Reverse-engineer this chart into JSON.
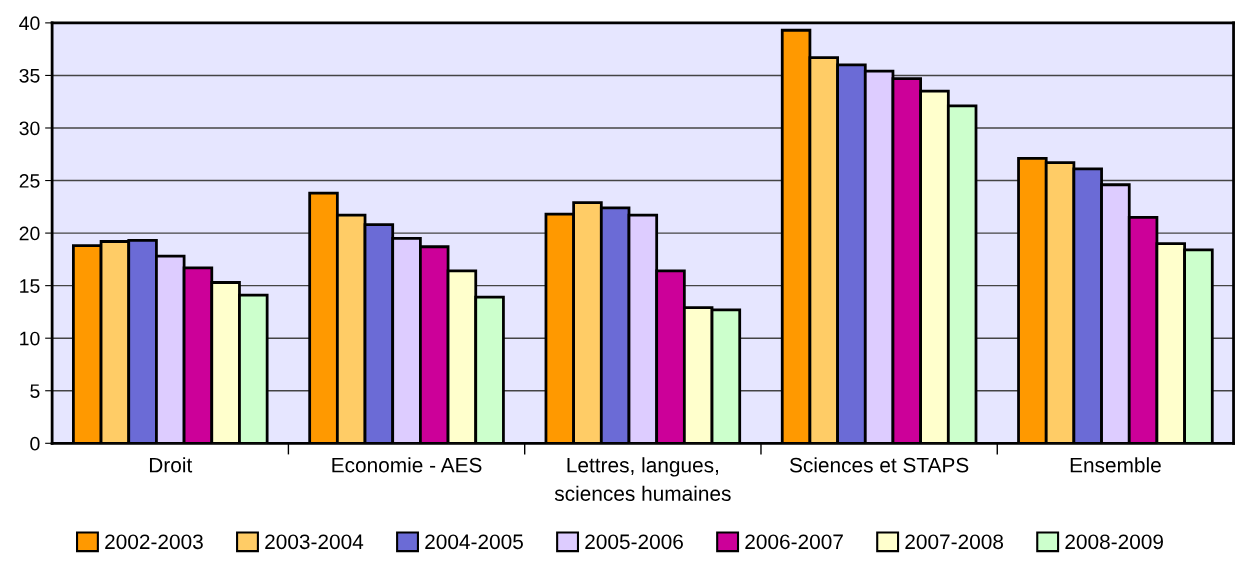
{
  "chart_data": {
    "type": "bar",
    "categories": [
      "Droit",
      "Economie - AES",
      "Lettres, langues,\nsciences humaines",
      "Sciences et STAPS",
      "Ensemble"
    ],
    "series": [
      {
        "name": "2002-2003",
        "color": "#ff9900",
        "values": [
          18.8,
          23.8,
          21.8,
          39.3,
          27.1
        ]
      },
      {
        "name": "2003-2004",
        "color": "#ffcc66",
        "values": [
          19.2,
          21.7,
          22.9,
          36.7,
          26.7
        ]
      },
      {
        "name": "2004-2005",
        "color": "#6b6bd6",
        "values": [
          19.3,
          20.8,
          22.4,
          36.0,
          26.1
        ]
      },
      {
        "name": "2005-2006",
        "color": "#ddccff",
        "values": [
          17.8,
          19.5,
          21.7,
          35.4,
          24.6
        ]
      },
      {
        "name": "2006-2007",
        "color": "#cc0099",
        "values": [
          16.7,
          18.7,
          16.4,
          34.7,
          21.5
        ]
      },
      {
        "name": "2007-2008",
        "color": "#ffffcc",
        "values": [
          15.3,
          16.4,
          12.9,
          33.5,
          19.0
        ]
      },
      {
        "name": "2008-2009",
        "color": "#ccffcc",
        "values": [
          14.1,
          13.9,
          12.7,
          32.1,
          18.4
        ]
      }
    ],
    "ylim": [
      0,
      40
    ],
    "yticks": [
      0,
      5,
      10,
      15,
      20,
      25,
      30,
      35,
      40
    ],
    "grid": "y",
    "legend": "bottom"
  }
}
